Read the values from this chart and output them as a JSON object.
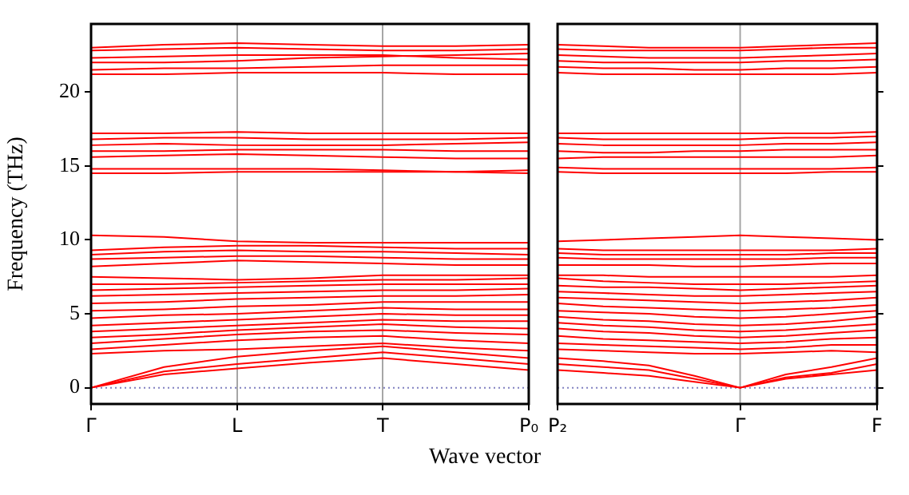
{
  "chart_data": [
    {
      "type": "line",
      "xlabel": "Wave vector",
      "ylabel": "Frequency (THz)",
      "categories": [
        "Γ",
        null,
        "L",
        null,
        "T",
        null,
        "P₀"
      ],
      "ylim": [
        -1.1,
        24.6
      ],
      "yticks": [
        0,
        5,
        10,
        15,
        20
      ],
      "grid": "x",
      "legend": false,
      "marker": "none",
      "line_style": "solid",
      "ref_lines": [
        {
          "axis": "y",
          "value": 0,
          "color": "#8080c0",
          "line_style": "dotted"
        }
      ],
      "series": [
        {
          "color": "#ff0000",
          "values": [
            0,
            0.9,
            1.3,
            1.7,
            2.0,
            1.6,
            1.2
          ]
        },
        {
          "color": "#ff0000",
          "values": [
            0,
            1.1,
            1.6,
            2.0,
            2.4,
            2.0,
            1.6
          ]
        },
        {
          "color": "#ff0000",
          "values": [
            0,
            1.4,
            2.1,
            2.5,
            2.8,
            2.4,
            2.0
          ]
        },
        {
          "color": "#ff0000",
          "values": [
            2.3,
            2.5,
            2.6,
            2.8,
            3.0,
            2.7,
            2.5
          ]
        },
        {
          "color": "#ff0000",
          "values": [
            2.6,
            2.9,
            3.2,
            3.4,
            3.5,
            3.2,
            3.0
          ]
        },
        {
          "color": "#ff0000",
          "values": [
            3.0,
            3.3,
            3.6,
            3.8,
            3.9,
            3.7,
            3.6
          ]
        },
        {
          "color": "#ff0000",
          "values": [
            3.4,
            3.6,
            3.9,
            4.1,
            4.3,
            4.1,
            4.0
          ]
        },
        {
          "color": "#ff0000",
          "values": [
            3.8,
            4.0,
            4.2,
            4.4,
            4.6,
            4.5,
            4.5
          ]
        },
        {
          "color": "#ff0000",
          "values": [
            4.2,
            4.4,
            4.6,
            4.8,
            5.0,
            4.9,
            4.9
          ]
        },
        {
          "color": "#ff0000",
          "values": [
            4.7,
            4.9,
            5.0,
            5.2,
            5.4,
            5.3,
            5.3
          ]
        },
        {
          "color": "#ff0000",
          "values": [
            5.2,
            5.3,
            5.5,
            5.6,
            5.8,
            5.8,
            5.8
          ]
        },
        {
          "color": "#ff0000",
          "values": [
            5.7,
            5.8,
            6.0,
            6.1,
            6.2,
            6.2,
            6.3
          ]
        },
        {
          "color": "#ff0000",
          "values": [
            6.2,
            6.3,
            6.4,
            6.5,
            6.6,
            6.6,
            6.7
          ]
        },
        {
          "color": "#ff0000",
          "values": [
            6.6,
            6.7,
            6.8,
            6.9,
            7.0,
            7.0,
            7.0
          ]
        },
        {
          "color": "#ff0000",
          "values": [
            7.0,
            7.0,
            7.1,
            7.2,
            7.3,
            7.3,
            7.4
          ]
        },
        {
          "color": "#ff0000",
          "values": [
            7.5,
            7.4,
            7.3,
            7.4,
            7.6,
            7.6,
            7.6
          ]
        },
        {
          "color": "#ff0000",
          "values": [
            8.2,
            8.4,
            8.6,
            8.5,
            8.4,
            8.3,
            8.3
          ]
        },
        {
          "color": "#ff0000",
          "values": [
            8.7,
            8.8,
            8.9,
            8.9,
            8.8,
            8.7,
            8.7
          ]
        },
        {
          "color": "#ff0000",
          "values": [
            9.0,
            9.2,
            9.3,
            9.2,
            9.2,
            9.1,
            9.0
          ]
        },
        {
          "color": "#ff0000",
          "values": [
            9.3,
            9.5,
            9.6,
            9.6,
            9.5,
            9.4,
            9.4
          ]
        },
        {
          "color": "#ff0000",
          "values": [
            10.3,
            10.2,
            9.9,
            9.8,
            9.8,
            9.8,
            9.8
          ]
        },
        {
          "color": "#ff0000",
          "values": [
            14.5,
            14.5,
            14.6,
            14.6,
            14.6,
            14.6,
            14.7
          ]
        },
        {
          "color": "#ff0000",
          "values": [
            14.8,
            14.8,
            14.8,
            14.8,
            14.7,
            14.6,
            14.5
          ]
        },
        {
          "color": "#ff0000",
          "values": [
            15.6,
            15.7,
            15.8,
            15.7,
            15.6,
            15.5,
            15.5
          ]
        },
        {
          "color": "#ff0000",
          "values": [
            16.0,
            16.0,
            16.1,
            16.1,
            16.1,
            16.0,
            16.0
          ]
        },
        {
          "color": "#ff0000",
          "values": [
            16.4,
            16.5,
            16.4,
            16.4,
            16.4,
            16.5,
            16.6
          ]
        },
        {
          "color": "#ff0000",
          "values": [
            16.8,
            16.9,
            16.9,
            16.8,
            16.8,
            16.8,
            16.9
          ]
        },
        {
          "color": "#ff0000",
          "values": [
            17.2,
            17.2,
            17.3,
            17.2,
            17.2,
            17.2,
            17.2
          ]
        },
        {
          "color": "#ff0000",
          "values": [
            21.2,
            21.2,
            21.3,
            21.3,
            21.3,
            21.2,
            21.2
          ]
        },
        {
          "color": "#ff0000",
          "values": [
            21.5,
            21.6,
            21.6,
            21.7,
            21.8,
            21.8,
            21.8
          ]
        },
        {
          "color": "#ff0000",
          "values": [
            22.0,
            22.0,
            22.1,
            22.3,
            22.4,
            22.5,
            22.6
          ]
        },
        {
          "color": "#ff0000",
          "values": [
            22.3,
            22.4,
            22.5,
            22.5,
            22.5,
            22.3,
            22.2
          ]
        },
        {
          "color": "#ff0000",
          "values": [
            22.8,
            22.9,
            23.0,
            22.9,
            22.8,
            22.8,
            22.9
          ]
        },
        {
          "color": "#ff0000",
          "values": [
            23.0,
            23.2,
            23.3,
            23.2,
            23.1,
            23.1,
            23.2
          ]
        }
      ]
    },
    {
      "type": "line",
      "categories": [
        "P₂",
        null,
        null,
        null,
        "Γ",
        null,
        null,
        "F"
      ],
      "ylim": [
        -1.1,
        24.6
      ],
      "yticks": [
        0,
        5,
        10,
        15,
        20
      ],
      "tick_labels": "x",
      "legend": false,
      "marker": "none",
      "line_style": "solid",
      "ref_lines": [
        {
          "axis": "y",
          "value": 0,
          "color": "#8080c0",
          "line_style": "dotted"
        },
        {
          "axis": "x",
          "value": "Γ",
          "color": "#a6a6a6",
          "line_style": "solid"
        }
      ],
      "series": [
        {
          "color": "#ff0000",
          "values": [
            1.2,
            1.0,
            0.8,
            0.4,
            0,
            0.6,
            0.9,
            1.2
          ]
        },
        {
          "color": "#ff0000",
          "values": [
            1.6,
            1.4,
            1.2,
            0.6,
            0,
            0.7,
            1.0,
            1.6
          ]
        },
        {
          "color": "#ff0000",
          "values": [
            2.0,
            1.8,
            1.5,
            0.8,
            0,
            0.9,
            1.4,
            2.0
          ]
        },
        {
          "color": "#ff0000",
          "values": [
            2.6,
            2.5,
            2.4,
            2.3,
            2.3,
            2.4,
            2.5,
            2.4
          ]
        },
        {
          "color": "#ff0000",
          "values": [
            3.0,
            2.9,
            2.8,
            2.7,
            2.6,
            2.7,
            2.9,
            2.9
          ]
        },
        {
          "color": "#ff0000",
          "values": [
            3.5,
            3.3,
            3.2,
            3.1,
            3.0,
            3.1,
            3.3,
            3.4
          ]
        },
        {
          "color": "#ff0000",
          "values": [
            4.0,
            3.8,
            3.7,
            3.5,
            3.4,
            3.5,
            3.7,
            3.9
          ]
        },
        {
          "color": "#ff0000",
          "values": [
            4.4,
            4.2,
            4.1,
            3.9,
            3.8,
            3.9,
            4.1,
            4.3
          ]
        },
        {
          "color": "#ff0000",
          "values": [
            4.8,
            4.6,
            4.5,
            4.3,
            4.2,
            4.3,
            4.5,
            4.8
          ]
        },
        {
          "color": "#ff0000",
          "values": [
            5.2,
            5.1,
            5.0,
            4.8,
            4.7,
            4.8,
            5.0,
            5.2
          ]
        },
        {
          "color": "#ff0000",
          "values": [
            5.7,
            5.5,
            5.4,
            5.3,
            5.2,
            5.3,
            5.4,
            5.6
          ]
        },
        {
          "color": "#ff0000",
          "values": [
            6.1,
            6.0,
            5.9,
            5.8,
            5.7,
            5.8,
            5.9,
            6.1
          ]
        },
        {
          "color": "#ff0000",
          "values": [
            6.5,
            6.4,
            6.3,
            6.2,
            6.2,
            6.3,
            6.4,
            6.5
          ]
        },
        {
          "color": "#ff0000",
          "values": [
            6.9,
            6.8,
            6.8,
            6.7,
            6.6,
            6.7,
            6.8,
            6.9
          ]
        },
        {
          "color": "#ff0000",
          "values": [
            7.4,
            7.2,
            7.1,
            7.0,
            7.0,
            7.0,
            7.1,
            7.2
          ]
        },
        {
          "color": "#ff0000",
          "values": [
            7.6,
            7.6,
            7.5,
            7.5,
            7.5,
            7.5,
            7.5,
            7.6
          ]
        },
        {
          "color": "#ff0000",
          "values": [
            8.3,
            8.3,
            8.3,
            8.2,
            8.2,
            8.3,
            8.4,
            8.4
          ]
        },
        {
          "color": "#ff0000",
          "values": [
            8.8,
            8.7,
            8.7,
            8.7,
            8.7,
            8.7,
            8.8,
            8.8
          ]
        },
        {
          "color": "#ff0000",
          "values": [
            9.1,
            9.0,
            9.0,
            9.0,
            9.0,
            9.0,
            9.1,
            9.1
          ]
        },
        {
          "color": "#ff0000",
          "values": [
            9.4,
            9.3,
            9.3,
            9.3,
            9.3,
            9.3,
            9.3,
            9.4
          ]
        },
        {
          "color": "#ff0000",
          "values": [
            9.9,
            10.0,
            10.1,
            10.2,
            10.3,
            10.2,
            10.1,
            10.0
          ]
        },
        {
          "color": "#ff0000",
          "values": [
            14.6,
            14.5,
            14.5,
            14.5,
            14.5,
            14.5,
            14.6,
            14.6
          ]
        },
        {
          "color": "#ff0000",
          "values": [
            14.9,
            14.8,
            14.8,
            14.8,
            14.8,
            14.8,
            14.8,
            14.9
          ]
        },
        {
          "color": "#ff0000",
          "values": [
            15.5,
            15.6,
            15.6,
            15.6,
            15.6,
            15.6,
            15.6,
            15.7
          ]
        },
        {
          "color": "#ff0000",
          "values": [
            16.0,
            15.9,
            15.9,
            16.0,
            16.0,
            16.1,
            16.1,
            16.1
          ]
        },
        {
          "color": "#ff0000",
          "values": [
            16.5,
            16.4,
            16.4,
            16.4,
            16.4,
            16.5,
            16.5,
            16.6
          ]
        },
        {
          "color": "#ff0000",
          "values": [
            16.9,
            16.8,
            16.8,
            16.8,
            16.8,
            16.9,
            16.9,
            17.0
          ]
        },
        {
          "color": "#ff0000",
          "values": [
            17.2,
            17.2,
            17.2,
            17.2,
            17.2,
            17.2,
            17.2,
            17.3
          ]
        },
        {
          "color": "#ff0000",
          "values": [
            21.3,
            21.2,
            21.2,
            21.2,
            21.2,
            21.2,
            21.2,
            21.3
          ]
        },
        {
          "color": "#ff0000",
          "values": [
            21.7,
            21.6,
            21.6,
            21.5,
            21.5,
            21.6,
            21.6,
            21.7
          ]
        },
        {
          "color": "#ff0000",
          "values": [
            22.1,
            22.0,
            22.0,
            22.0,
            22.0,
            22.1,
            22.1,
            22.2
          ]
        },
        {
          "color": "#ff0000",
          "values": [
            22.5,
            22.4,
            22.3,
            22.3,
            22.3,
            22.4,
            22.5,
            22.6
          ]
        },
        {
          "color": "#ff0000",
          "values": [
            22.9,
            22.8,
            22.8,
            22.8,
            22.8,
            22.9,
            23.0,
            23.0
          ]
        },
        {
          "color": "#ff0000",
          "values": [
            23.2,
            23.1,
            23.0,
            23.0,
            23.0,
            23.1,
            23.2,
            23.3
          ]
        }
      ]
    }
  ]
}
